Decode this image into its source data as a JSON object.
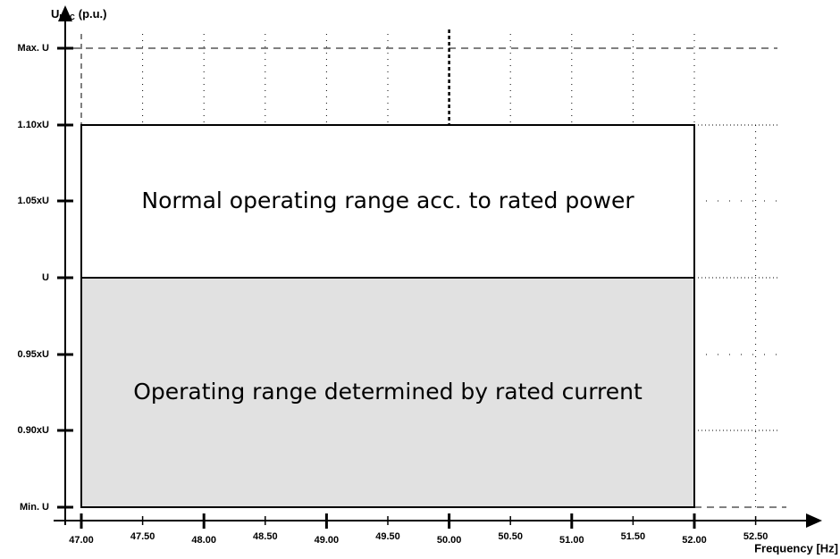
{
  "y_axis": {
    "title": "U",
    "title_sub": "POC",
    "title_unit": "(p.u.)",
    "ticks": [
      "Max. U",
      "1.10xU",
      "1.05xU",
      "U",
      "0.95xU",
      "0.90xU",
      "Min. U"
    ]
  },
  "x_axis": {
    "title": "Frequency [Hz]",
    "ticks": [
      "47.00",
      "47.50",
      "48.00",
      "48.50",
      "49.00",
      "49.50",
      "50.00",
      "50.50",
      "51.00",
      "51.50",
      "52.00",
      "52.50"
    ]
  },
  "regions": [
    {
      "label": "Normal operating range acc. to rated power"
    },
    {
      "label": "Operating range determined by rated current"
    }
  ]
}
